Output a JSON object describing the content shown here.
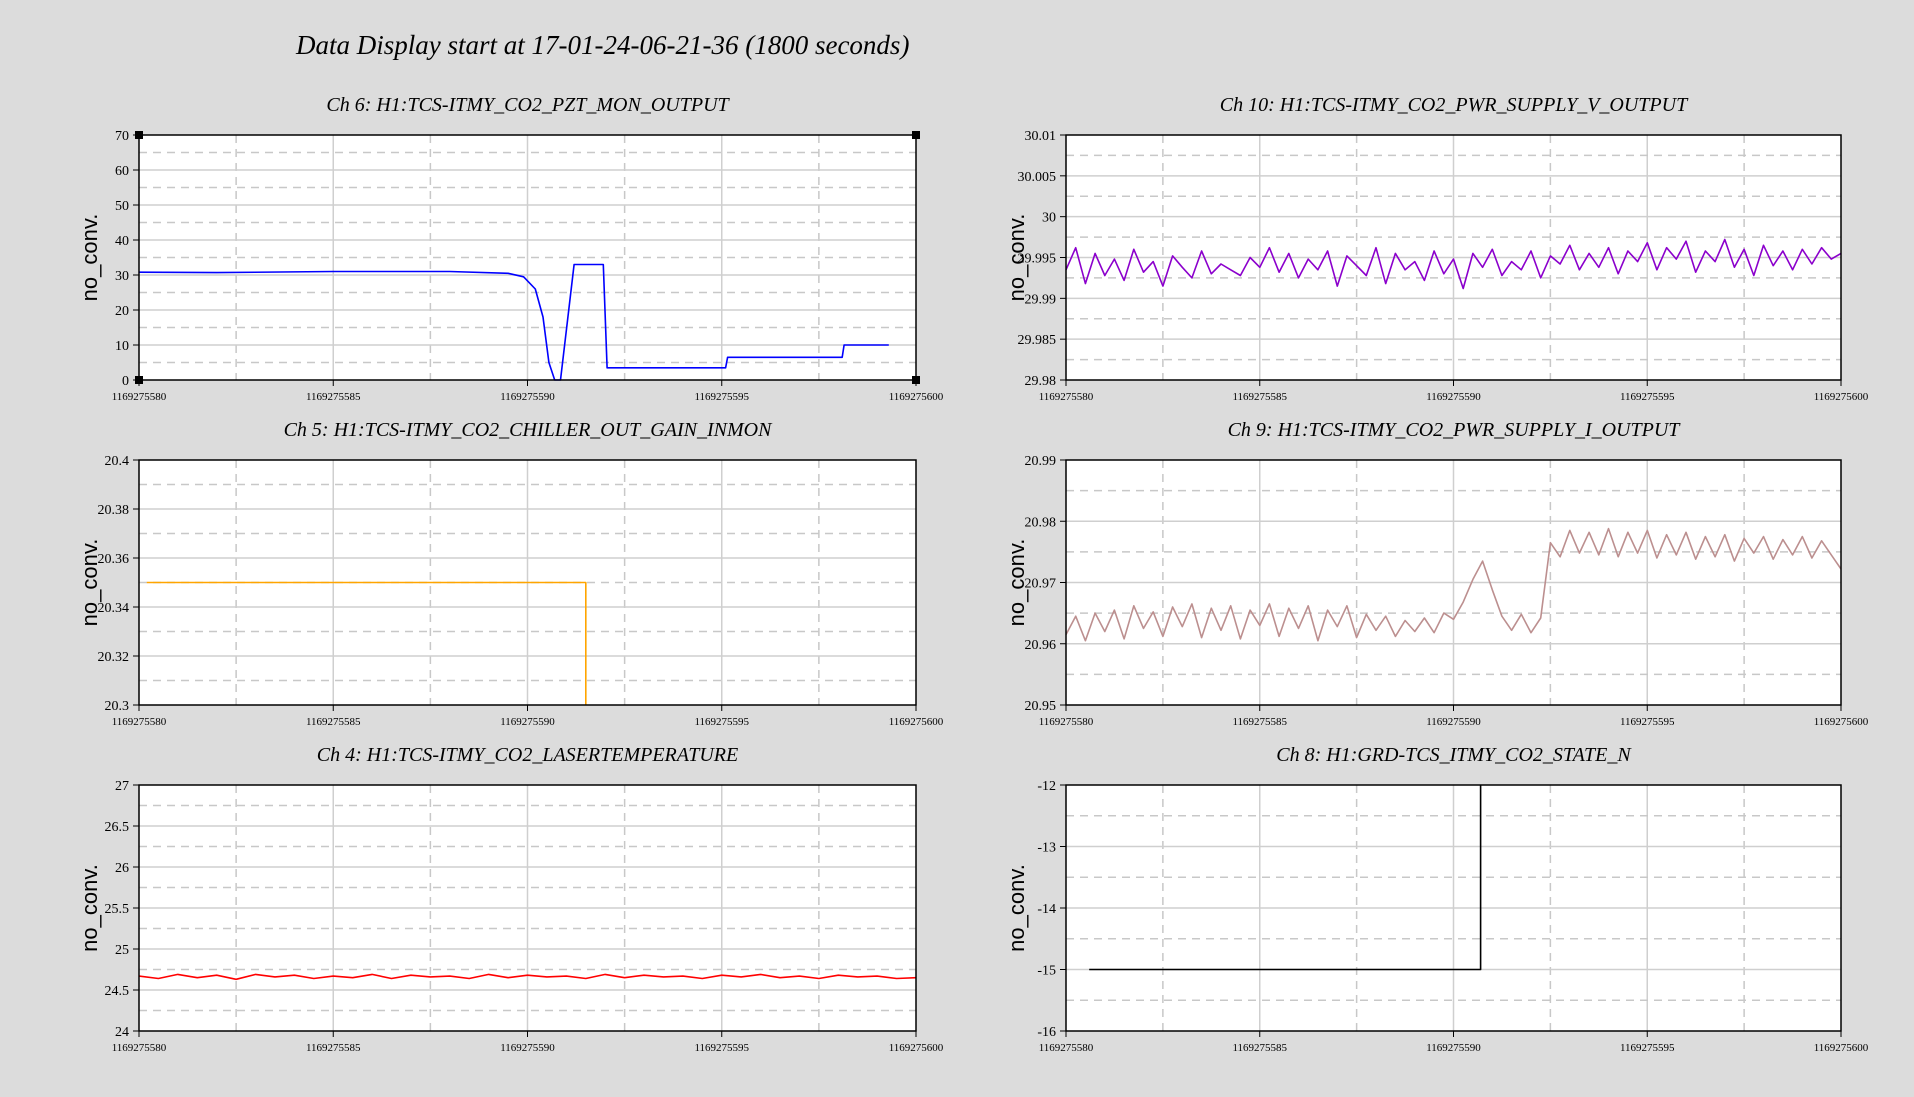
{
  "page": {
    "title": "Data Display start at 17-01-24-06-21-36 (1800 seconds)",
    "background": "#dcdcdc"
  },
  "chart_data": [
    {
      "type": "line",
      "title": "Ch 6: H1:TCS-ITMY_CO2_PZT_MON_OUTPUT",
      "ylabel": "no_conv.",
      "xlim": [
        1169275580,
        1169275600
      ],
      "ylim": [
        0,
        70
      ],
      "xticks": [
        "1169275580",
        "1169275585",
        "1169275590",
        "1169275595",
        "1169275600"
      ],
      "yticks": [
        "0",
        "10",
        "20",
        "30",
        "40",
        "50",
        "60",
        "70"
      ],
      "grid": true,
      "series": [
        {
          "color": "#0000ff",
          "x": [
            1169275580,
            1169275582,
            1169275585,
            1169275588,
            1169275589.5,
            1169275589.9,
            1169275590.2,
            1169275590.4,
            1169275590.55,
            1169275590.7,
            1169275590.75,
            1169275590.85,
            1169275591.2,
            1169275591.95,
            1169275592.05,
            1169275593,
            1169275595.1,
            1169275595.15,
            1169275598.1,
            1169275598.15,
            1169275599.3
          ],
          "y": [
            30.8,
            30.7,
            31,
            31,
            30.5,
            29.5,
            26,
            18,
            5,
            0,
            0,
            0,
            33,
            33,
            3.5,
            3.5,
            3.5,
            6.5,
            6.5,
            10,
            10
          ]
        }
      ]
    },
    {
      "type": "line",
      "title": "Ch 10: H1:TCS-ITMY_CO2_PWR_SUPPLY_V_OUTPUT",
      "ylabel": "no_conv.",
      "xlim": [
        1169275580,
        1169275600
      ],
      "ylim": [
        29.98,
        30.01
      ],
      "xticks": [
        "1169275580",
        "1169275585",
        "1169275590",
        "1169275595",
        "1169275600"
      ],
      "yticks": [
        "29.98",
        "29.985",
        "29.99",
        "29.995",
        "30",
        "30.005",
        "30.01"
      ],
      "grid": true,
      "series": [
        {
          "color": "#8b00cc",
          "x": [
            1169275580,
            1169275580.25,
            1169275580.5,
            1169275580.75,
            1169275581,
            1169275581.25,
            1169275581.5,
            1169275581.75,
            1169275582,
            1169275582.25,
            1169275582.5,
            1169275582.75,
            1169275583,
            1169275583.25,
            1169275583.5,
            1169275583.75,
            1169275584,
            1169275584.25,
            1169275584.5,
            1169275584.75,
            1169275585,
            1169275585.25,
            1169275585.5,
            1169275585.75,
            1169275586,
            1169275586.25,
            1169275586.5,
            1169275586.75,
            1169275587,
            1169275587.25,
            1169275587.5,
            1169275587.75,
            1169275588,
            1169275588.25,
            1169275588.5,
            1169275588.75,
            1169275589,
            1169275589.25,
            1169275589.5,
            1169275589.75,
            1169275590,
            1169275590.25,
            1169275590.5,
            1169275590.75,
            1169275591,
            1169275591.25,
            1169275591.5,
            1169275591.75,
            1169275592,
            1169275592.25,
            1169275592.5,
            1169275592.75,
            1169275593,
            1169275593.25,
            1169275593.5,
            1169275593.75,
            1169275594,
            1169275594.25,
            1169275594.5,
            1169275594.75,
            1169275595,
            1169275595.25,
            1169275595.5,
            1169275595.75,
            1169275596,
            1169275596.25,
            1169275596.5,
            1169275596.75,
            1169275597,
            1169275597.25,
            1169275597.5,
            1169275597.75,
            1169275598,
            1169275598.25,
            1169275598.5,
            1169275598.75,
            1169275599,
            1169275599.25,
            1169275599.5,
            1169275599.75,
            1169275600
          ],
          "y": [
            29.9935,
            29.9962,
            29.9918,
            29.9955,
            29.9928,
            29.9948,
            29.9922,
            29.996,
            29.9932,
            29.9945,
            29.9915,
            29.9952,
            29.9938,
            29.9925,
            29.9958,
            29.993,
            29.9942,
            29.9935,
            29.9928,
            29.995,
            29.9938,
            29.9962,
            29.9932,
            29.9955,
            29.9925,
            29.9948,
            29.9935,
            29.9958,
            29.9915,
            29.9952,
            29.994,
            29.9928,
            29.9962,
            29.9918,
            29.9955,
            29.9935,
            29.9945,
            29.9922,
            29.9958,
            29.993,
            29.9948,
            29.9912,
            29.9955,
            29.9938,
            29.996,
            29.9928,
            29.9945,
            29.9935,
            29.9958,
            29.9925,
            29.9952,
            29.9942,
            29.9965,
            29.9935,
            29.9955,
            29.9938,
            29.9962,
            29.993,
            29.9958,
            29.9945,
            29.9968,
            29.9935,
            29.9962,
            29.9948,
            29.997,
            29.9932,
            29.9958,
            29.9945,
            29.9972,
            29.9938,
            29.996,
            29.9928,
            29.9965,
            29.994,
            29.9958,
            29.9935,
            29.996,
            29.9942,
            29.9962,
            29.9948,
            29.9955
          ]
        }
      ]
    },
    {
      "type": "line",
      "title": "Ch 5: H1:TCS-ITMY_CO2_CHILLER_OUT_GAIN_INMON",
      "ylabel": "no_conv.",
      "xlim": [
        1169275580,
        1169275600
      ],
      "ylim": [
        20.3,
        20.4
      ],
      "xticks": [
        "1169275580",
        "1169275585",
        "1169275590",
        "1169275595",
        "1169275600"
      ],
      "yticks": [
        "20.3",
        "20.32",
        "20.34",
        "20.36",
        "20.38",
        "20.4"
      ],
      "grid": true,
      "series": [
        {
          "color": "#ffa500",
          "x": [
            1169275580.2,
            1169275591.5,
            1169275591.5
          ],
          "y": [
            20.35,
            20.35,
            20.3
          ]
        }
      ]
    },
    {
      "type": "line",
      "title": "Ch 9: H1:TCS-ITMY_CO2_PWR_SUPPLY_I_OUTPUT",
      "ylabel": "no_conv.",
      "xlim": [
        1169275580,
        1169275600
      ],
      "ylim": [
        20.95,
        20.99
      ],
      "xticks": [
        "1169275580",
        "1169275585",
        "1169275590",
        "1169275595",
        "1169275600"
      ],
      "yticks": [
        "20.95",
        "20.96",
        "20.97",
        "20.98",
        "20.99"
      ],
      "grid": true,
      "series": [
        {
          "color": "#bc8f8f",
          "x": [
            1169275580,
            1169275580.25,
            1169275580.5,
            1169275580.75,
            1169275581,
            1169275581.25,
            1169275581.5,
            1169275581.75,
            1169275582,
            1169275582.25,
            1169275582.5,
            1169275582.75,
            1169275583,
            1169275583.25,
            1169275583.5,
            1169275583.75,
            1169275584,
            1169275584.25,
            1169275584.5,
            1169275584.75,
            1169275585,
            1169275585.25,
            1169275585.5,
            1169275585.75,
            1169275586,
            1169275586.25,
            1169275586.5,
            1169275586.75,
            1169275587,
            1169275587.25,
            1169275587.5,
            1169275587.75,
            1169275588,
            1169275588.25,
            1169275588.5,
            1169275588.75,
            1169275589,
            1169275589.25,
            1169275589.5,
            1169275589.75,
            1169275590,
            1169275590.25,
            1169275590.5,
            1169275590.75,
            1169275591,
            1169275591.25,
            1169275591.5,
            1169275591.75,
            1169275592,
            1169275592.25,
            1169275592.5,
            1169275592.75,
            1169275593,
            1169275593.25,
            1169275593.5,
            1169275593.75,
            1169275594,
            1169275594.25,
            1169275594.5,
            1169275594.75,
            1169275595,
            1169275595.25,
            1169275595.5,
            1169275595.75,
            1169275596,
            1169275596.25,
            1169275596.5,
            1169275596.75,
            1169275597,
            1169275597.25,
            1169275597.5,
            1169275597.75,
            1169275598,
            1169275598.25,
            1169275598.5,
            1169275598.75,
            1169275599,
            1169275599.25,
            1169275599.5,
            1169275599.75,
            1169275600
          ],
          "y": [
            20.9615,
            20.9645,
            20.9605,
            20.965,
            20.962,
            20.9655,
            20.9608,
            20.9662,
            20.9625,
            20.9652,
            20.9612,
            20.966,
            20.9628,
            20.9665,
            20.961,
            20.9658,
            20.9622,
            20.9662,
            20.9608,
            20.9655,
            20.963,
            20.9665,
            20.9612,
            20.9658,
            20.9625,
            20.9662,
            20.9605,
            20.9655,
            20.9628,
            20.9662,
            20.961,
            20.9648,
            20.9622,
            20.9645,
            20.9612,
            20.9638,
            20.962,
            20.9642,
            20.9618,
            20.965,
            20.964,
            20.9668,
            20.9705,
            20.9735,
            20.9688,
            20.9645,
            20.9622,
            20.9648,
            20.9618,
            20.9642,
            20.9765,
            20.9742,
            20.9785,
            20.9748,
            20.9782,
            20.9745,
            20.9788,
            20.9742,
            20.9782,
            20.9748,
            20.9785,
            20.974,
            20.9778,
            20.9745,
            20.9782,
            20.9738,
            20.9775,
            20.9742,
            20.9778,
            20.9735,
            20.9772,
            20.9748,
            20.9775,
            20.9738,
            20.977,
            20.9745,
            20.9775,
            20.974,
            20.9768,
            20.9745,
            20.9722
          ]
        }
      ]
    },
    {
      "type": "line",
      "title": "Ch 4: H1:TCS-ITMY_CO2_LASERTEMPERATURE",
      "ylabel": "no_conv.",
      "xlim": [
        1169275580,
        1169275600
      ],
      "ylim": [
        24,
        27
      ],
      "xticks": [
        "1169275580",
        "1169275585",
        "1169275590",
        "1169275595",
        "1169275600"
      ],
      "yticks": [
        "24",
        "24.5",
        "25",
        "25.5",
        "26",
        "26.5",
        "27"
      ],
      "grid": true,
      "series": [
        {
          "color": "#ff0000",
          "x": [
            1169275580,
            1169275580.5,
            1169275581,
            1169275581.5,
            1169275582,
            1169275582.5,
            1169275583,
            1169275583.5,
            1169275584,
            1169275584.5,
            1169275585,
            1169275585.5,
            1169275586,
            1169275586.5,
            1169275587,
            1169275587.5,
            1169275588,
            1169275588.5,
            1169275589,
            1169275589.5,
            1169275590,
            1169275590.5,
            1169275591,
            1169275591.5,
            1169275592,
            1169275592.5,
            1169275593,
            1169275593.5,
            1169275594,
            1169275594.5,
            1169275595,
            1169275595.5,
            1169275596,
            1169275596.5,
            1169275597,
            1169275597.5,
            1169275598,
            1169275598.5,
            1169275599,
            1169275599.5,
            1169275600
          ],
          "y": [
            24.67,
            24.64,
            24.69,
            24.65,
            24.68,
            24.63,
            24.69,
            24.66,
            24.68,
            24.64,
            24.67,
            24.65,
            24.69,
            24.64,
            24.68,
            24.66,
            24.67,
            24.64,
            24.69,
            24.65,
            24.68,
            24.66,
            24.67,
            24.64,
            24.69,
            24.65,
            24.68,
            24.66,
            24.67,
            24.64,
            24.68,
            24.66,
            24.69,
            24.65,
            24.67,
            24.64,
            24.68,
            24.66,
            24.67,
            24.64,
            24.65
          ]
        }
      ]
    },
    {
      "type": "line",
      "title": "Ch 8: H1:GRD-TCS_ITMY_CO2_STATE_N",
      "ylabel": "no_conv.",
      "xlim": [
        1169275580,
        1169275600
      ],
      "ylim": [
        -16,
        -12
      ],
      "xticks": [
        "1169275580",
        "1169275585",
        "1169275590",
        "1169275595",
        "1169275600"
      ],
      "yticks": [
        "-16",
        "-15",
        "-14",
        "-13",
        "-12"
      ],
      "grid": true,
      "series": [
        {
          "color": "#000000",
          "x": [
            1169275580.6,
            1169275590.7,
            1169275590.7
          ],
          "y": [
            -15,
            -15,
            -12
          ]
        }
      ]
    }
  ]
}
